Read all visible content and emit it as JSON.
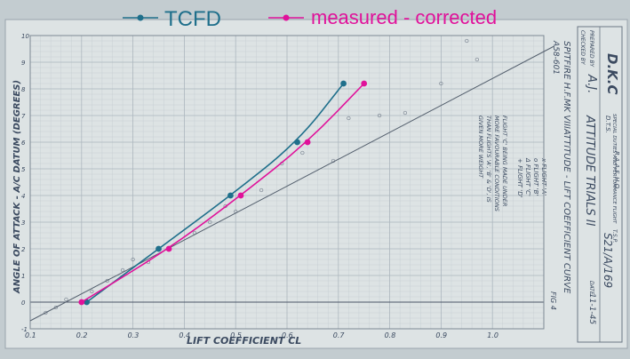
{
  "chart_data": {
    "type": "line",
    "xlabel": "LIFT COEFFICIENT  CL",
    "ylabel": "ANGLE OF ATTACK - A/C DATUM (DEGREES)",
    "xlim": [
      0.1,
      1.1
    ],
    "ylim": [
      -1,
      10
    ],
    "x_ticks": [
      "0.1",
      "0.2",
      "0.3",
      "0.4",
      "0.5",
      "0.6",
      "0.7",
      "0.8",
      "0.9",
      "1.0"
    ],
    "y_ticks": [
      "-1",
      "0",
      "1",
      "2",
      "3",
      "4",
      "5",
      "6",
      "7",
      "8",
      "9",
      "10"
    ],
    "legend_position": "top",
    "series": [
      {
        "name": "TCFD",
        "color": "#1f6f8b",
        "x": [
          0.21,
          0.35,
          0.49,
          0.62,
          0.71
        ],
        "y": [
          0.0,
          2.0,
          4.0,
          6.0,
          8.2
        ]
      },
      {
        "name": "measured - corrected",
        "color": "#e0119a",
        "x": [
          0.2,
          0.37,
          0.51,
          0.64,
          0.75
        ],
        "y": [
          0.0,
          2.0,
          4.0,
          6.0,
          8.2
        ]
      }
    ],
    "reference_line": {
      "x": [
        0.1,
        1.12
      ],
      "y": [
        -0.7,
        9.6
      ],
      "color": "#55606e"
    }
  },
  "header_block": {
    "prepared_by_label": "PREPARED BY",
    "prepared_by_value": "D.K.C",
    "checked_by_label": "CHECKED BY",
    "checked_by_value": "A.J.",
    "org_line1": "R.A.A.F. H.Q.",
    "org_line2": "D.T.S.",
    "org_line3": "SPECIAL DUTIES AND PERFORMANCE FLIGHT",
    "report_title": "ATTITUDE TRIALS II",
    "ref_label": "T.S.P.",
    "ref_value": "S21/A/169",
    "date_label": "DATE",
    "date_value": "11-1-45"
  },
  "annotations": {
    "aircraft": "SPITFIRE H.F.MK VIII",
    "serial": "A58-601",
    "chart_heading": "ATTITUDE - LIFT COEFFICIENT CURVE",
    "legend_flight_a": "x FLIGHT 'A'",
    "legend_flight_b": "o FLIGHT 'B'",
    "legend_flight_c": "Δ FLIGHT 'C'",
    "legend_flight_d": "+ FLIGHT 'D'",
    "note_line1": "FLIGHT 'C' BEING MADE UNDER",
    "note_line2": "MORE FAVOURABLE CONDITIONS",
    "note_line3": "THAN FLIGHTS 'A', 'B' & 'D', IS",
    "note_line4": "GIVEN MORE WEIGHT",
    "fig_label": "FIG 4"
  }
}
